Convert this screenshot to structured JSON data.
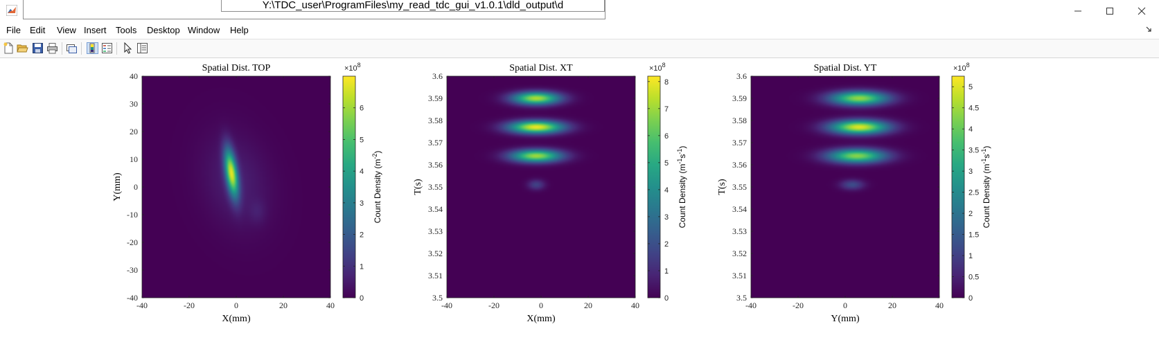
{
  "window": {
    "path": "Y:\\TDC_user\\ProgramFiles\\my_read_tdc_gui_v1.0.1\\dld_output\\d",
    "minimize_icon": "minimize-icon",
    "maximize_icon": "maximize-icon",
    "close_icon": "close-icon"
  },
  "menu": [
    "File",
    "Edit",
    "View",
    "Insert",
    "Tools",
    "Desktop",
    "Window",
    "Help"
  ],
  "toolbar_icons": [
    "new-figure-icon",
    "open-icon",
    "save-icon",
    "print-icon",
    "link-plot-icon",
    "insert-colorbar-icon",
    "insert-legend-icon",
    "edit-plot-icon",
    "property-inspector-icon"
  ],
  "colors": {
    "background": "#440154",
    "mid": "#21918c",
    "high": "#fde725"
  },
  "chart_data": [
    {
      "type": "heatmap",
      "title": "Spatial Dist. TOP",
      "xlabel": "X(mm)",
      "ylabel": "Y(mm)",
      "xlim": [
        -40,
        40
      ],
      "ylim": [
        -40,
        40
      ],
      "xticks": [
        "-40",
        "-20",
        "0",
        "20",
        "40"
      ],
      "yticks": [
        "-40",
        "-30",
        "-20",
        "-10",
        "0",
        "10",
        "20",
        "30",
        "40"
      ],
      "colorbar": {
        "label": "Count Density (m",
        "label_sup": "-2",
        "label_end": ")",
        "exponent": "×10",
        "exponent_sup": "8",
        "range": [
          0,
          7
        ],
        "ticks": [
          "0",
          "1",
          "2",
          "3",
          "4",
          "5",
          "6"
        ]
      },
      "blobs": [
        {
          "x": 0,
          "y": 2,
          "sx": 10,
          "sy": 12,
          "rho": -0.2,
          "amp": 0.6
        },
        {
          "x": 9,
          "y": -9,
          "sx": 2.5,
          "sy": 3,
          "rho": 0,
          "amp": 0.35
        },
        {
          "x": -2,
          "y": 5,
          "sx": 2,
          "sy": 6,
          "rho": -0.5,
          "amp": 6.2
        }
      ]
    },
    {
      "type": "heatmap",
      "title": "Spatial Dist. XT",
      "xlabel": "X(mm)",
      "ylabel": "T(s)",
      "xlim": [
        -40,
        40
      ],
      "ylim": [
        3.5,
        3.6
      ],
      "xticks": [
        "-40",
        "-20",
        "0",
        "20",
        "40"
      ],
      "yticks": [
        "3.5",
        "3.51",
        "3.52",
        "3.53",
        "3.54",
        "3.55",
        "3.56",
        "3.57",
        "3.58",
        "3.59",
        "3.6"
      ],
      "colorbar": {
        "label": "Count Density (m",
        "label_sup": "-1",
        "label_mid": "s",
        "label_sup2": "-1",
        "label_end": ")",
        "exponent": "×10",
        "exponent_sup": "8",
        "range": [
          0,
          8.2
        ],
        "ticks": [
          "0",
          "1",
          "2",
          "3",
          "4",
          "5",
          "6",
          "7",
          "8"
        ]
      },
      "blobs": [
        {
          "x": -2,
          "y": 3.59,
          "sx": 7,
          "sy": 0.002,
          "rho": 0,
          "amp": 7.2
        },
        {
          "x": -2,
          "y": 3.577,
          "sx": 8,
          "sy": 0.002,
          "rho": 0,
          "amp": 8.0
        },
        {
          "x": -2,
          "y": 3.564,
          "sx": 7.5,
          "sy": 0.002,
          "rho": 0,
          "amp": 7.0
        },
        {
          "x": -2,
          "y": 3.551,
          "sx": 2.5,
          "sy": 0.0016,
          "rho": 0,
          "amp": 1.6
        }
      ]
    },
    {
      "type": "heatmap",
      "title": "Spatial Dist. YT",
      "xlabel": "Y(mm)",
      "ylabel": "T(s)",
      "xlim": [
        -40,
        40
      ],
      "ylim": [
        3.5,
        3.6
      ],
      "xticks": [
        "-40",
        "-20",
        "0",
        "20",
        "40"
      ],
      "yticks": [
        "3.5",
        "3.51",
        "3.52",
        "3.53",
        "3.54",
        "3.55",
        "3.56",
        "3.57",
        "3.58",
        "3.59",
        "3.6"
      ],
      "colorbar": {
        "label": "Count Density (m",
        "label_sup": "-1",
        "label_mid": "s",
        "label_sup2": "-1",
        "label_end": ")",
        "exponent": "×10",
        "exponent_sup": "8",
        "range": [
          0,
          5.25
        ],
        "ticks": [
          "0",
          "0.5",
          "1",
          "1.5",
          "2",
          "2.5",
          "3",
          "3.5",
          "4",
          "4.5",
          "5"
        ]
      },
      "blobs": [
        {
          "x": 6,
          "y": 3.59,
          "sx": 8.5,
          "sy": 0.0022,
          "rho": 0,
          "amp": 4.4
        },
        {
          "x": 6,
          "y": 3.577,
          "sx": 8.5,
          "sy": 0.0022,
          "rho": 0,
          "amp": 5.0
        },
        {
          "x": 5,
          "y": 3.564,
          "sx": 8.5,
          "sy": 0.0022,
          "rho": 0,
          "amp": 4.3
        },
        {
          "x": 3,
          "y": 3.551,
          "sx": 3.5,
          "sy": 0.0016,
          "rho": 0,
          "amp": 1.2
        }
      ]
    }
  ]
}
